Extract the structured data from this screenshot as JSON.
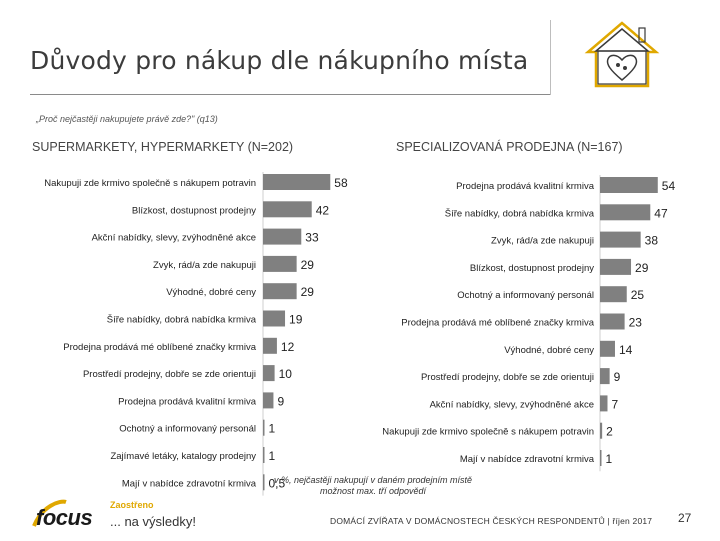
{
  "title": "Důvody pro nákup dle nákupního místa",
  "question": "„Proč nejčastěji nakupujete právě zde?\" (q13)",
  "footnote_line1": "v %, nejčastěji nakupují v daném prodejním místě",
  "footnote_line2": "možnost max. tří odpovědí",
  "footer": "DOMÁCÍ ZVÍŘATA V DOMÁCNOSTECH ČESKÝCH RESPONDENTŮ | říjen 2017",
  "page_number": "27",
  "logo": {
    "name": "focus",
    "tag": "Zaostřeno",
    "slogan": "... na výsledky!"
  },
  "colors": {
    "bar": "#808080",
    "accent": "#e0a800",
    "text": "#333333"
  },
  "chart_data": [
    {
      "type": "bar",
      "orientation": "horizontal",
      "title": "SUPERMARKETY, HYPERMARKETY (N=202)",
      "categories": [
        "Nakupuji zde krmivo společně s nákupem potravin",
        "Blízkost, dostupnost prodejny",
        "Akční nabídky, slevy, zvýhodněné akce",
        "Zvyk, rád/a zde nakupuji",
        "Výhodné, dobré ceny",
        "Šíře nabídky, dobrá nabídka krmiva",
        "Prodejna prodává mé oblíbené značky krmiva",
        "Prostředí prodejny, dobře se zde orientuji",
        "Prodejna prodává kvalitní krmiva",
        "Ochotný a informovaný personál",
        "Zajímavé letáky, katalogy prodejny",
        "Mají v nabídce zdravotní krmiva"
      ],
      "values": [
        58,
        42,
        33,
        29,
        29,
        19,
        12,
        10,
        9,
        1,
        1,
        0.5
      ],
      "value_labels": [
        "58",
        "42",
        "33",
        "29",
        "29",
        "19",
        "12",
        "10",
        "9",
        "1",
        "1",
        "0,5"
      ],
      "xlim": [
        0,
        60
      ]
    },
    {
      "type": "bar",
      "orientation": "horizontal",
      "title": "SPECIALIZOVANÁ PRODEJNA (N=167)",
      "categories": [
        "Prodejna prodává kvalitní krmiva",
        "Šíře nabídky, dobrá nabídka krmiva",
        "Zvyk, rád/a zde nakupuji",
        "Blízkost, dostupnost prodejny",
        "Ochotný a informovaný personál",
        "Prodejna prodává mé oblíbené značky krmiva",
        "Výhodné, dobré ceny",
        "Prostředí prodejny, dobře se zde orientuji",
        "Akční nabídky, slevy, zvýhodněné akce",
        "Nakupuji zde krmivo společně s nákupem potravin",
        "Mají v nabídce zdravotní krmiva"
      ],
      "values": [
        54,
        47,
        38,
        29,
        25,
        23,
        14,
        9,
        7,
        2,
        1
      ],
      "value_labels": [
        "54",
        "47",
        "38",
        "29",
        "25",
        "23",
        "14",
        "9",
        "7",
        "2",
        "1"
      ],
      "xlim": [
        0,
        60
      ]
    }
  ]
}
